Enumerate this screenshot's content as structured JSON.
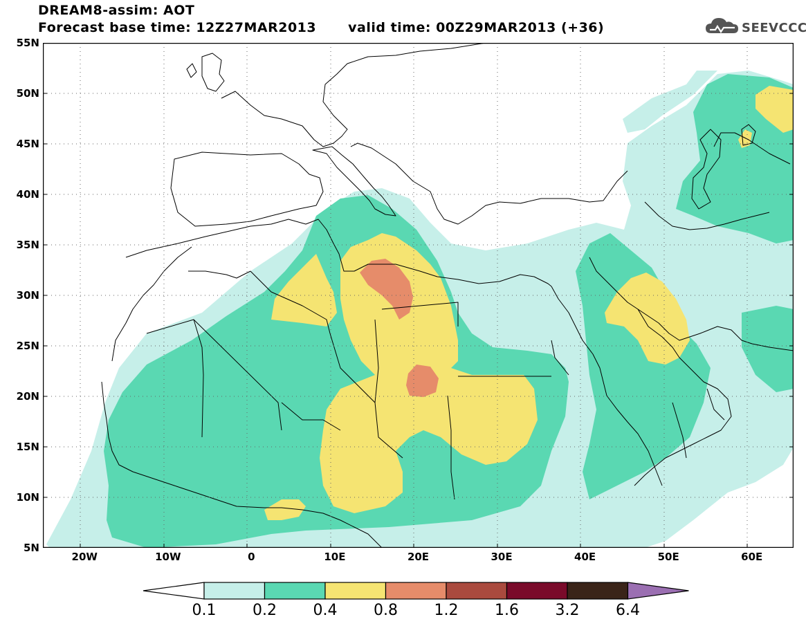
{
  "title": {
    "line1": "DREAM8-assim: AOT",
    "base_label": "Forecast base time: 12Z27MAR2013",
    "valid_label": "valid time: 00Z29MAR2013 (+36)"
  },
  "logo": {
    "text": "SEEVCCC",
    "icon": "cloud-icon"
  },
  "map": {
    "lon_range": [
      -25,
      65
    ],
    "lat_range": [
      5,
      55
    ],
    "grid": "dotted",
    "lat_labels": [
      "55N",
      "50N",
      "45N",
      "40N",
      "35N",
      "30N",
      "25N",
      "20N",
      "15N",
      "10N",
      "5N"
    ],
    "lon_labels": [
      "20W",
      "10W",
      "0",
      "10E",
      "20E",
      "30E",
      "40E",
      "50E",
      "60E"
    ]
  },
  "colorbar": {
    "labels": [
      "0.1",
      "0.2",
      "0.4",
      "0.8",
      "1.2",
      "1.6",
      "3.2",
      "6.4"
    ],
    "colors": [
      "#ffffff",
      "#c6efe9",
      "#5ad8b2",
      "#f5e472",
      "#e68c6a",
      "#aa4a3e",
      "#7a0a2a",
      "#3a2418",
      "#9b6fb2"
    ]
  },
  "chart_data": {
    "type": "heatmap",
    "title": "DREAM8-assim: AOT",
    "variable": "AOT",
    "forecast_base_time": "12Z27MAR2013",
    "valid_time": "00Z29MAR2013 (+36)",
    "levels": [
      0.1,
      0.2,
      0.4,
      0.8,
      1.2,
      1.6,
      3.2,
      6.4
    ],
    "xlim": [
      -25,
      65
    ],
    "ylim": [
      5,
      55
    ],
    "max_regions": [
      {
        "level": "0.8-1.2",
        "lon": 17,
        "lat": 31
      },
      {
        "level": "0.8-1.2",
        "lon": 21,
        "lat": 21
      }
    ]
  }
}
